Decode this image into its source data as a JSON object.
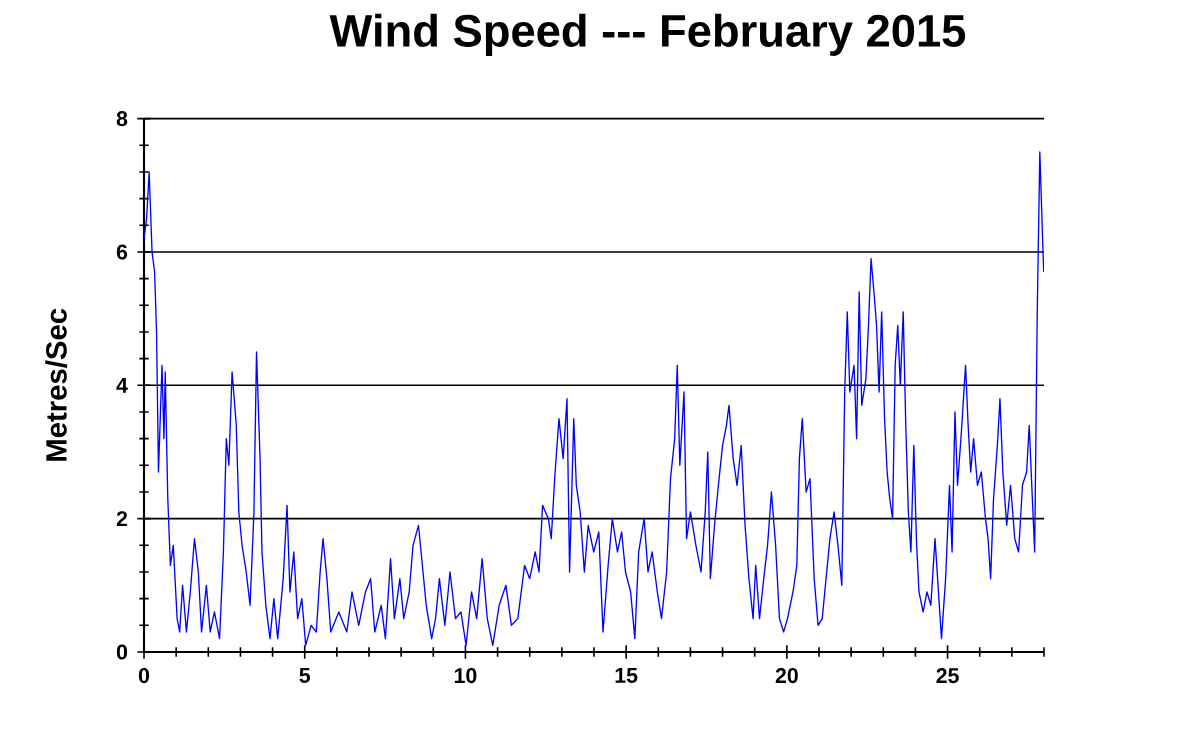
{
  "chart_data": {
    "type": "line",
    "title": "Wind Speed --- February 2015",
    "ylabel": "Metres/Sec",
    "xlim": [
      0,
      28
    ],
    "ylim": [
      0,
      8
    ],
    "grid": "y",
    "xticks": [
      0,
      {
        "value": 1,
        "label": null
      },
      {
        "value": 2,
        "label": null
      },
      {
        "value": 3,
        "label": null
      },
      {
        "value": 4,
        "label": null
      },
      5,
      {
        "value": 6,
        "label": null
      },
      {
        "value": 7,
        "label": null
      },
      {
        "value": 8,
        "label": null
      },
      {
        "value": 9,
        "label": null
      },
      10,
      {
        "value": 11,
        "label": null
      },
      {
        "value": 12,
        "label": null
      },
      {
        "value": 13,
        "label": null
      },
      {
        "value": 14,
        "label": null
      },
      15,
      {
        "value": 16,
        "label": null
      },
      {
        "value": 17,
        "label": null
      },
      {
        "value": 18,
        "label": null
      },
      {
        "value": 19,
        "label": null
      },
      20,
      {
        "value": 21,
        "label": null
      },
      {
        "value": 22,
        "label": null
      },
      {
        "value": 23,
        "label": null
      },
      {
        "value": 24,
        "label": null
      },
      25,
      {
        "value": 26,
        "label": null
      },
      {
        "value": 27,
        "label": null
      },
      {
        "value": 28,
        "label": null
      }
    ],
    "yticks": [
      0,
      {
        "value": 0.4,
        "label": null
      },
      {
        "value": 0.8,
        "label": null
      },
      {
        "value": 1.2,
        "label": null
      },
      {
        "value": 1.6,
        "label": null
      },
      2,
      {
        "value": 2.4,
        "label": null
      },
      {
        "value": 2.8,
        "label": null
      },
      {
        "value": 3.2,
        "label": null
      },
      {
        "value": 3.6,
        "label": null
      },
      4,
      {
        "value": 4.4,
        "label": null
      },
      {
        "value": 4.8,
        "label": null
      },
      {
        "value": 5.2,
        "label": null
      },
      {
        "value": 5.6,
        "label": null
      },
      6,
      {
        "value": 6.4,
        "label": null
      },
      {
        "value": 6.8,
        "label": null
      },
      {
        "value": 7.2,
        "label": null
      },
      {
        "value": 7.6,
        "label": null
      },
      8
    ],
    "series": [
      {
        "color": "#0000ff",
        "x": [
          0,
          0.08,
          0.16,
          0.25,
          0.33,
          0.39,
          0.45,
          0.56,
          0.62,
          0.66,
          0.74,
          0.82,
          0.91,
          1.03,
          1.11,
          1.2,
          1.32,
          1.44,
          1.57,
          1.69,
          1.79,
          1.94,
          2.06,
          2.19,
          2.35,
          2.47,
          2.56,
          2.64,
          2.74,
          2.87,
          2.95,
          3.05,
          3.18,
          3.3,
          3.42,
          3.5,
          3.61,
          3.67,
          3.79,
          3.92,
          4.04,
          4.16,
          4.33,
          4.45,
          4.54,
          4.66,
          4.78,
          4.91,
          5.03,
          5.2,
          5.36,
          5.48,
          5.57,
          5.69,
          5.81,
          6.06,
          6.31,
          6.47,
          6.68,
          6.89,
          7.05,
          7.18,
          7.38,
          7.51,
          7.67,
          7.79,
          7.96,
          8.08,
          8.25,
          8.37,
          8.54,
          8.66,
          8.78,
          8.95,
          9.07,
          9.19,
          9.36,
          9.52,
          9.69,
          9.86,
          10.02,
          10.19,
          10.35,
          10.52,
          10.68,
          10.85,
          11.05,
          11.26,
          11.43,
          11.63,
          11.84,
          12.0,
          12.17,
          12.29,
          12.4,
          12.58,
          12.67,
          12.79,
          12.91,
          13.04,
          13.16,
          13.24,
          13.37,
          13.45,
          13.57,
          13.7,
          13.82,
          13.99,
          14.15,
          14.28,
          14.44,
          14.57,
          14.73,
          14.86,
          14.98,
          15.14,
          15.27,
          15.39,
          15.56,
          15.68,
          15.81,
          15.97,
          16.1,
          16.26,
          16.38,
          16.51,
          16.59,
          16.67,
          16.8,
          16.88,
          17.0,
          17.17,
          17.33,
          17.46,
          17.54,
          17.62,
          17.75,
          17.87,
          18.0,
          18.12,
          18.2,
          18.33,
          18.45,
          18.58,
          18.7,
          18.82,
          18.95,
          19.03,
          19.15,
          19.28,
          19.4,
          19.52,
          19.65,
          19.77,
          19.9,
          20.02,
          20.19,
          20.31,
          20.39,
          20.48,
          20.6,
          20.72,
          20.85,
          20.97,
          21.1,
          21.22,
          21.34,
          21.47,
          21.59,
          21.71,
          21.8,
          21.88,
          21.96,
          22.09,
          22.17,
          22.25,
          22.33,
          22.46,
          22.54,
          22.62,
          22.71,
          22.79,
          22.87,
          22.95,
          23.04,
          23.12,
          23.2,
          23.29,
          23.37,
          23.45,
          23.53,
          23.62,
          23.7,
          23.78,
          23.86,
          23.95,
          24.03,
          24.11,
          24.24,
          24.36,
          24.48,
          24.61,
          24.69,
          24.81,
          24.94,
          25.06,
          25.14,
          25.23,
          25.31,
          25.43,
          25.56,
          25.64,
          25.72,
          25.81,
          25.93,
          26.05,
          26.18,
          26.26,
          26.34,
          26.43,
          26.55,
          26.63,
          26.72,
          26.84,
          26.96,
          27.09,
          27.21,
          27.33,
          27.46,
          27.54,
          27.62,
          27.71,
          27.79,
          27.87,
          27.95,
          27.99
        ],
        "values": [
          6.2,
          6.5,
          7.2,
          6.0,
          5.7,
          4.8,
          2.7,
          4.3,
          3.2,
          4.2,
          2.3,
          1.3,
          1.6,
          0.5,
          0.3,
          1.0,
          0.3,
          0.9,
          1.7,
          1.2,
          0.3,
          1.0,
          0.3,
          0.6,
          0.2,
          1.5,
          3.2,
          2.8,
          4.2,
          3.4,
          2.1,
          1.6,
          1.2,
          0.7,
          2.1,
          4.5,
          2.9,
          1.5,
          0.7,
          0.2,
          0.8,
          0.2,
          1.1,
          2.2,
          0.9,
          1.5,
          0.5,
          0.8,
          0.1,
          0.4,
          0.3,
          1.2,
          1.7,
          1.1,
          0.3,
          0.6,
          0.3,
          0.9,
          0.4,
          0.9,
          1.1,
          0.3,
          0.7,
          0.2,
          1.4,
          0.5,
          1.1,
          0.5,
          0.9,
          1.6,
          1.9,
          1.3,
          0.7,
          0.2,
          0.5,
          1.1,
          0.4,
          1.2,
          0.5,
          0.6,
          0.1,
          0.9,
          0.5,
          1.4,
          0.5,
          0.1,
          0.7,
          1.0,
          0.4,
          0.5,
          1.3,
          1.1,
          1.5,
          1.2,
          2.2,
          2.0,
          1.7,
          2.7,
          3.5,
          2.9,
          3.8,
          1.2,
          3.5,
          2.5,
          2.1,
          1.2,
          1.9,
          1.5,
          1.8,
          0.3,
          1.3,
          2.0,
          1.5,
          1.8,
          1.2,
          0.9,
          0.2,
          1.5,
          2.0,
          1.2,
          1.5,
          0.9,
          0.5,
          1.2,
          2.6,
          3.2,
          4.3,
          2.8,
          3.9,
          1.7,
          2.1,
          1.6,
          1.2,
          2.1,
          3.0,
          1.1,
          1.9,
          2.5,
          3.1,
          3.4,
          3.7,
          2.9,
          2.5,
          3.1,
          1.9,
          1.1,
          0.5,
          1.3,
          0.5,
          1.1,
          1.6,
          2.4,
          1.6,
          0.5,
          0.3,
          0.5,
          0.9,
          1.3,
          2.9,
          3.5,
          2.4,
          2.6,
          1.1,
          0.4,
          0.5,
          1.1,
          1.7,
          2.1,
          1.6,
          1.0,
          3.9,
          5.1,
          3.9,
          4.3,
          3.2,
          5.4,
          3.7,
          4.1,
          4.9,
          5.9,
          5.4,
          4.9,
          3.9,
          5.1,
          3.5,
          2.7,
          2.3,
          2.0,
          4.3,
          4.9,
          4.0,
          5.1,
          3.4,
          2.1,
          1.5,
          3.1,
          1.7,
          0.9,
          0.6,
          0.9,
          0.7,
          1.7,
          1.1,
          0.2,
          1.1,
          2.5,
          1.5,
          3.6,
          2.5,
          3.3,
          4.3,
          3.4,
          2.7,
          3.2,
          2.5,
          2.7,
          2.0,
          1.7,
          1.1,
          2.3,
          3.1,
          3.8,
          2.7,
          1.9,
          2.5,
          1.7,
          1.5,
          2.5,
          2.7,
          3.4,
          2.5,
          1.5,
          5.1,
          7.5,
          6.3,
          5.7
        ]
      }
    ]
  }
}
